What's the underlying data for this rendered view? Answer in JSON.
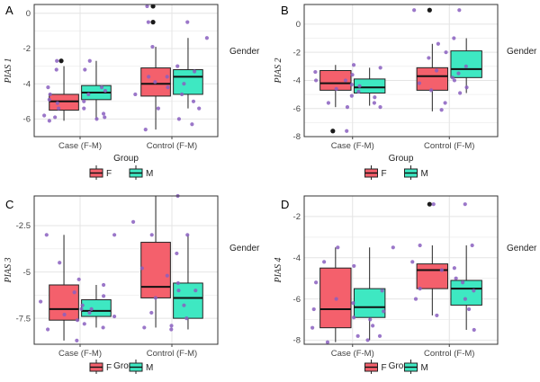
{
  "colors": {
    "F": "#f4606c",
    "M": "#3ee8c2",
    "jitter": "#8a5fbf",
    "outlier": "#1a1a1a",
    "grid": "#e4e4e4",
    "panel_border": "#333333"
  },
  "chart_data": [
    {
      "type": "box",
      "panel": "A",
      "xlabel": "Group",
      "ylabel": "PIAS 1",
      "categories": [
        "Case (F-M)",
        "Control (F-M)"
      ],
      "yticks": [
        0,
        -2,
        -4,
        -6
      ],
      "ylim": [
        -7.0,
        0.5
      ],
      "legend_title": "Gender",
      "legend_labels": [
        "F",
        "M"
      ],
      "boxes": [
        {
          "category": "Case (F-M)",
          "group": "F",
          "min": -6.1,
          "q1": -5.5,
          "median": -5.0,
          "q3": -4.6,
          "max": -3.0,
          "outliers": [
            -2.7
          ]
        },
        {
          "category": "Case (F-M)",
          "group": "M",
          "min": -6.0,
          "q1": -4.9,
          "median": -4.5,
          "q3": -4.1,
          "max": -2.7,
          "outliers": []
        },
        {
          "category": "Control (F-M)",
          "group": "F",
          "min": -6.6,
          "q1": -4.7,
          "median": -4.0,
          "q3": -3.1,
          "max": -1.9,
          "outliers": [
            0.4,
            -0.5
          ]
        },
        {
          "category": "Control (F-M)",
          "group": "M",
          "min": -5.4,
          "q1": -4.6,
          "median": -3.6,
          "q3": -3.2,
          "max": -1.4,
          "outliers": []
        }
      ],
      "jitter": [
        {
          "category": "Case (F-M)",
          "group": "F",
          "values": [
            -2.7,
            -3.2,
            -4.2,
            -4.6,
            -5.1,
            -5.4,
            -5.8,
            -5.9,
            -6.1,
            -4.9
          ]
        },
        {
          "category": "Case (F-M)",
          "group": "M",
          "values": [
            -2.7,
            -3.2,
            -4.4,
            -4.6,
            -5.0,
            -5.4,
            -5.7,
            -5.9,
            -6.0,
            -4.2
          ]
        },
        {
          "category": "Control (F-M)",
          "group": "F",
          "values": [
            0.4,
            -0.5,
            -1.9,
            -3.0,
            -3.6,
            -3.9,
            -4.2,
            -4.6,
            -5.4,
            -6.0,
            -6.6
          ]
        },
        {
          "category": "Control (F-M)",
          "group": "M",
          "values": [
            -0.5,
            -1.4,
            -3.3,
            -3.6,
            -4.0,
            -4.6,
            -5.0,
            -5.4,
            -6.3
          ]
        }
      ]
    },
    {
      "type": "box",
      "panel": "B",
      "xlabel": "Group",
      "ylabel": "PIAS 2",
      "categories": [
        "Case (F-M)",
        "Control (F-M)"
      ],
      "yticks": [
        0,
        -2,
        -4,
        -6,
        -8
      ],
      "ylim": [
        -8.0,
        1.4
      ],
      "legend_title": "Gender",
      "legend_labels": [
        "F",
        "M"
      ],
      "boxes": [
        {
          "category": "Case (F-M)",
          "group": "F",
          "min": -5.9,
          "q1": -4.7,
          "median": -4.2,
          "q3": -3.3,
          "max": -2.9,
          "outliers": [
            -7.6
          ]
        },
        {
          "category": "Case (F-M)",
          "group": "M",
          "min": -5.8,
          "q1": -4.9,
          "median": -4.5,
          "q3": -3.9,
          "max": -3.1,
          "outliers": []
        },
        {
          "category": "Control (F-M)",
          "group": "F",
          "min": -6.2,
          "q1": -4.7,
          "median": -3.7,
          "q3": -3.1,
          "max": -1.4,
          "outliers": [
            1.0
          ]
        },
        {
          "category": "Control (F-M)",
          "group": "M",
          "min": -4.9,
          "q1": -3.8,
          "median": -3.2,
          "q3": -1.9,
          "max": -1.0,
          "outliers": []
        }
      ],
      "jitter": [
        {
          "category": "Case (F-M)",
          "group": "F",
          "values": [
            -2.9,
            -3.4,
            -4.0,
            -4.3,
            -4.6,
            -5.1,
            -5.6,
            -5.9,
            -7.6
          ]
        },
        {
          "category": "Case (F-M)",
          "group": "M",
          "values": [
            -3.1,
            -3.6,
            -4.0,
            -4.4,
            -4.8,
            -5.2,
            -5.6,
            -5.9
          ]
        },
        {
          "category": "Control (F-M)",
          "group": "F",
          "values": [
            1.0,
            -1.4,
            -2.4,
            -3.3,
            -3.8,
            -4.2,
            -4.7,
            -5.6,
            -6.1
          ]
        },
        {
          "category": "Control (F-M)",
          "group": "M",
          "values": [
            1.0,
            -1.0,
            -2.0,
            -3.0,
            -3.5,
            -4.0,
            -4.5,
            -4.9
          ]
        }
      ]
    },
    {
      "type": "box",
      "panel": "C",
      "xlabel": "Group",
      "ylabel": "PIAS 3",
      "categories": [
        "Case (F-M)",
        "Control (F-M)"
      ],
      "yticks": [
        -2.5,
        -5.0,
        -7.5
      ],
      "ylim": [
        -8.9,
        -0.9
      ],
      "legend_title": "Gender",
      "legend_labels": [
        "F",
        "M"
      ],
      "boxes": [
        {
          "category": "Case (F-M)",
          "group": "F",
          "min": -8.7,
          "q1": -7.6,
          "median": -7.0,
          "q3": -5.7,
          "max": -3.0,
          "outliers": []
        },
        {
          "category": "Case (F-M)",
          "group": "M",
          "min": -8.0,
          "q1": -7.4,
          "median": -7.1,
          "q3": -6.5,
          "max": -5.7,
          "outliers": []
        },
        {
          "category": "Control (F-M)",
          "group": "F",
          "min": -8.0,
          "q1": -6.4,
          "median": -5.8,
          "q3": -3.4,
          "max": -0.9,
          "outliers": []
        },
        {
          "category": "Control (F-M)",
          "group": "M",
          "min": -8.1,
          "q1": -7.5,
          "median": -6.4,
          "q3": -5.6,
          "max": -3.0,
          "outliers": []
        }
      ],
      "jitter": [
        {
          "category": "Case (F-M)",
          "group": "F",
          "values": [
            -3.0,
            -4.5,
            -5.4,
            -6.1,
            -6.6,
            -7.0,
            -7.3,
            -7.6,
            -8.1,
            -8.7
          ]
        },
        {
          "category": "Case (F-M)",
          "group": "M",
          "values": [
            -3.0,
            -5.7,
            -6.3,
            -6.8,
            -7.0,
            -7.2,
            -7.4,
            -7.8,
            -8.0
          ]
        },
        {
          "category": "Control (F-M)",
          "group": "F",
          "values": [
            -2.3,
            -3.0,
            -4.0,
            -4.8,
            -5.6,
            -6.0,
            -6.4,
            -7.2,
            -8.0
          ]
        },
        {
          "category": "Control (F-M)",
          "group": "M",
          "values": [
            -0.9,
            -3.0,
            -5.2,
            -6.0,
            -6.8,
            -7.5,
            -7.9,
            -8.1
          ]
        }
      ]
    },
    {
      "type": "box",
      "panel": "D",
      "xlabel": "Group",
      "ylabel": "PIAS 4",
      "categories": [
        "Case (F-M)",
        "Control (F-M)"
      ],
      "yticks": [
        -2,
        -4,
        -6,
        -8
      ],
      "ylim": [
        -8.2,
        -1.0
      ],
      "legend_title": "Gender",
      "legend_labels": [
        "F",
        "M"
      ],
      "boxes": [
        {
          "category": "Case (F-M)",
          "group": "F",
          "min": -8.1,
          "q1": -7.4,
          "median": -6.5,
          "q3": -4.5,
          "max": -3.5,
          "outliers": []
        },
        {
          "category": "Case (F-M)",
          "group": "M",
          "min": -8.0,
          "q1": -6.9,
          "median": -6.4,
          "q3": -5.5,
          "max": -3.5,
          "outliers": []
        },
        {
          "category": "Control (F-M)",
          "group": "F",
          "min": -6.8,
          "q1": -5.5,
          "median": -4.6,
          "q3": -4.3,
          "max": -3.4,
          "outliers": [
            -1.4
          ]
        },
        {
          "category": "Control (F-M)",
          "group": "M",
          "min": -7.5,
          "q1": -6.3,
          "median": -5.5,
          "q3": -5.1,
          "max": -3.4,
          "outliers": []
        }
      ],
      "jitter": [
        {
          "category": "Case (F-M)",
          "group": "F",
          "values": [
            -3.5,
            -4.2,
            -5.2,
            -6.0,
            -6.5,
            -6.9,
            -7.4,
            -7.8,
            -8.1
          ]
        },
        {
          "category": "Case (F-M)",
          "group": "M",
          "values": [
            -3.5,
            -4.4,
            -5.6,
            -6.2,
            -6.6,
            -7.0,
            -7.3,
            -7.8,
            -8.0
          ]
        },
        {
          "category": "Control (F-M)",
          "group": "F",
          "values": [
            -1.4,
            -3.4,
            -4.2,
            -4.6,
            -5.0,
            -5.5,
            -6.0,
            -6.8
          ]
        },
        {
          "category": "Control (F-M)",
          "group": "M",
          "values": [
            -1.4,
            -3.4,
            -4.5,
            -5.2,
            -5.6,
            -6.0,
            -6.5,
            -7.5
          ]
        }
      ]
    }
  ]
}
